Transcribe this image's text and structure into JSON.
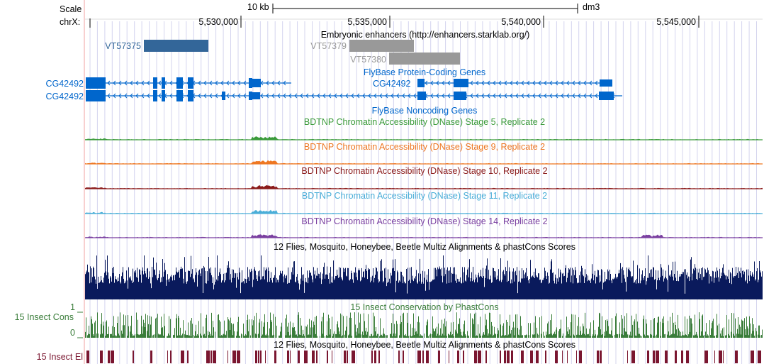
{
  "header": {
    "scale_label": "Scale",
    "scale_bar_label": "10 kb",
    "assembly": "dm3",
    "chrom_label": "chrX:"
  },
  "ruler": {
    "ticks": [
      "5,530,000",
      "5,535,000",
      "5,540,000",
      "5,545,000"
    ]
  },
  "enhancers": {
    "title": "Embryonic enhancers (http://enhancers.starklab.org/)",
    "items": [
      {
        "name": "VT57375",
        "color": "#336699"
      },
      {
        "name": "VT57379",
        "color": "#999999"
      },
      {
        "name": "VT57380",
        "color": "#999999"
      }
    ]
  },
  "genes": {
    "title": "FlyBase Protein-Coding Genes",
    "color": "#0066cc",
    "transcripts": [
      {
        "name": "CG42492"
      },
      {
        "name": "CG42492"
      }
    ],
    "inline_label": "CG42492",
    "noncoding_title": "FlyBase Noncoding Genes"
  },
  "dnase_tracks": [
    {
      "title": "BDTNP Chromatin Accessibility (DNase) Stage 5, Replicate 2",
      "color": "#3a9a3a"
    },
    {
      "title": "BDTNP Chromatin Accessibility (DNase) Stage 9, Replicate 2",
      "color": "#ee7722"
    },
    {
      "title": "BDTNP Chromatin Accessibility (DNase) Stage 10, Replicate 2",
      "color": "#8b1a1a"
    },
    {
      "title": "BDTNP Chromatin Accessibility (DNase) Stage 11, Replicate 2",
      "color": "#4aaed8"
    },
    {
      "title": "BDTNP Chromatin Accessibility (DNase) Stage 14, Replicate 2",
      "color": "#7a3fa0"
    }
  ],
  "multiz": {
    "title": "12 Flies, Mosquito, Honeybee, Beetle Multiz Alignments & phastCons Scores",
    "color": "#0a1a5c"
  },
  "cons": {
    "title": "15 Insect Conservation by PhastCons",
    "left_label": "15 Insect Cons",
    "axis_max": "1",
    "axis_min": "0",
    "color": "#3a7d3a"
  },
  "elements": {
    "title": "12 Flies, Mosquito, Honeybee, Beetle Multiz Alignments & phastCons Scores",
    "left_label": "15 Insect El",
    "color": "#7a1630"
  },
  "colors": {
    "grid": "#d4d4ee",
    "ruler": "#000000",
    "left_guide": "#f2a0a0"
  }
}
